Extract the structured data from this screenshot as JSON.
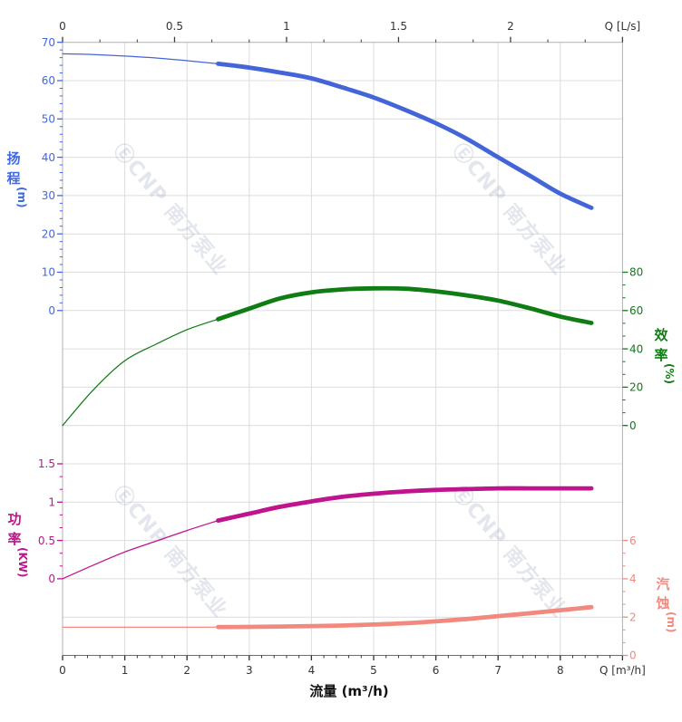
{
  "watermark": {
    "text": "ⒺCNP 南方泵业",
    "color": "#9aa6bf"
  },
  "chart_data": {
    "type": "line",
    "title": "",
    "xlabel": "流量 (m³/h)",
    "x_axis_bottom": {
      "unit_label": "Q [m³/h]",
      "ticks": [
        0,
        1,
        2,
        3,
        4,
        5,
        6,
        7,
        8
      ],
      "range": [
        0,
        9
      ]
    },
    "x_axis_top": {
      "unit_label": "Q [L/s]",
      "ticks": [
        0,
        0.5,
        1,
        1.5,
        2
      ],
      "range": [
        0,
        2.5
      ]
    },
    "x": [
      0,
      0.5,
      1,
      1.5,
      2,
      2.5,
      3,
      3.5,
      4,
      4.5,
      5,
      5.5,
      6,
      6.5,
      7,
      7.5,
      8,
      8.5
    ],
    "bold_from_x": 2.5,
    "series": [
      {
        "id": "head",
        "name": "扬程",
        "unit": "(m)",
        "color": "#4365d8",
        "label_color": "#4169e1",
        "axis_side": "left",
        "axis_ticks": [
          70,
          60,
          50,
          40,
          30,
          20,
          10,
          0
        ],
        "axis_range": [
          0,
          70
        ],
        "values": [
          67,
          66.8,
          66.4,
          65.9,
          65.2,
          64.4,
          63.4,
          62.1,
          60.6,
          58.2,
          55.6,
          52.4,
          48.9,
          44.8,
          40.0,
          35.3,
          30.5,
          26.8
        ]
      },
      {
        "id": "efficiency",
        "name": "效率",
        "unit": "(%)",
        "color": "#0f7c14",
        "label_color": "#0f7c14",
        "axis_side": "right",
        "axis_ticks": [
          80,
          60,
          40,
          20,
          0
        ],
        "axis_range": [
          0,
          80
        ],
        "values": [
          0,
          18.8,
          33.8,
          42.4,
          50.0,
          55.5,
          61.0,
          66.4,
          69.5,
          71.0,
          71.6,
          71.4,
          70.0,
          67.9,
          65.2,
          61.3,
          56.9,
          53.5
        ]
      },
      {
        "id": "power",
        "name": "功率",
        "unit": "(KW)",
        "color": "#c0138e",
        "label_color": "#c0138e",
        "axis_side": "left",
        "axis_ticks": [
          1.5,
          1,
          0.5,
          0
        ],
        "axis_range": [
          0,
          1.5
        ],
        "values": [
          0,
          0.18,
          0.35,
          0.49,
          0.63,
          0.76,
          0.85,
          0.94,
          1.01,
          1.07,
          1.11,
          1.14,
          1.16,
          1.17,
          1.18,
          1.18,
          1.18,
          1.18
        ]
      },
      {
        "id": "npsh",
        "name": "汽蚀",
        "unit": "(m)",
        "color": "#f2897e",
        "label_color": "#f2897e",
        "axis_side": "right",
        "axis_ticks": [
          6,
          4,
          2,
          0
        ],
        "axis_range": [
          0,
          6
        ],
        "values": [
          1.47,
          1.47,
          1.47,
          1.47,
          1.47,
          1.48,
          1.49,
          1.51,
          1.53,
          1.56,
          1.61,
          1.68,
          1.78,
          1.9,
          2.05,
          2.2,
          2.36,
          2.52
        ]
      }
    ],
    "colors": {
      "grid": "#dcdcdc",
      "border": "#b0b0b0",
      "border_bottom": "#6e6e6e",
      "x_tick": "#3c3c3c",
      "x_label": "#333333",
      "x_title": "#111111"
    }
  }
}
